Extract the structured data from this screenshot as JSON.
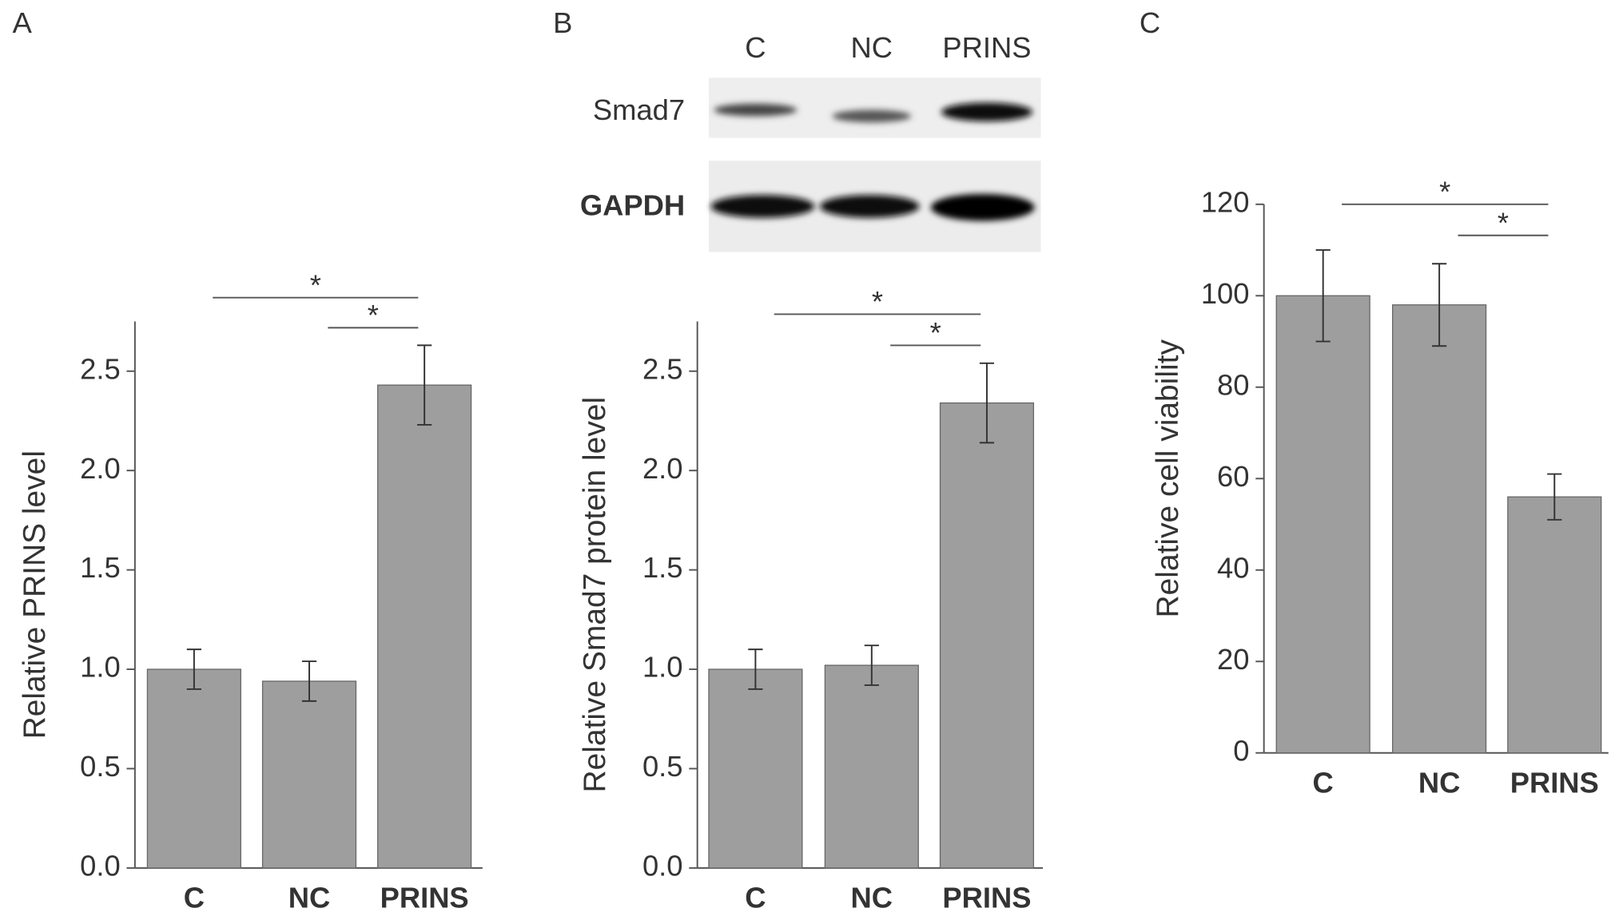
{
  "chart_data": [
    {
      "type": "bar",
      "panel": "A",
      "ylabel": "Relative PRINS level",
      "categories": [
        "C",
        "NC",
        "PRINS"
      ],
      "values": [
        1.0,
        0.94,
        2.43
      ],
      "errors": [
        0.1,
        0.1,
        0.2
      ],
      "color": "#9e9e9e",
      "ylim": [
        0,
        2.75
      ],
      "yticks": [
        {
          "value": 0,
          "label": "0.0"
        },
        0.5,
        {
          "value": 1,
          "label": "1.0"
        },
        1.5,
        {
          "value": 2,
          "label": "2.0"
        },
        2.5
      ],
      "significance": [
        {
          "label": "*",
          "from": "C",
          "to": "PRINS"
        },
        {
          "label": "*",
          "from": "NC",
          "to": "PRINS"
        }
      ]
    },
    {
      "type": "bar",
      "panel": "B",
      "ylabel": "Relative Smad7 protein level",
      "blot": {
        "lanes": [
          "C",
          "NC",
          "PRINS"
        ],
        "rows": [
          "Smad7",
          "GAPDH"
        ]
      },
      "categories": [
        "C",
        "NC",
        "PRINS"
      ],
      "values": [
        1.0,
        1.02,
        2.34
      ],
      "errors": [
        0.1,
        0.1,
        0.2
      ],
      "color": "#9e9e9e",
      "ylim": [
        0,
        2.75
      ],
      "yticks": [
        {
          "value": 0,
          "label": "0.0"
        },
        0.5,
        {
          "value": 1,
          "label": "1.0"
        },
        1.5,
        {
          "value": 2,
          "label": "2.0"
        },
        2.5
      ],
      "significance": [
        {
          "label": "*",
          "from": "C",
          "to": "PRINS"
        },
        {
          "label": "*",
          "from": "NC",
          "to": "PRINS"
        }
      ]
    },
    {
      "type": "bar",
      "panel": "C",
      "ylabel": "Relative cell viability",
      "categories": [
        "C",
        "NC",
        "PRINS"
      ],
      "values": [
        100,
        98,
        56
      ],
      "errors": [
        10,
        9,
        5
      ],
      "color": "#9e9e9e",
      "ylim": [
        0,
        120
      ],
      "yticks": [
        0,
        20,
        40,
        60,
        80,
        100,
        120
      ],
      "significance": [
        {
          "label": "*",
          "from": "C",
          "to": "PRINS"
        },
        {
          "label": "*",
          "from": "NC",
          "to": "PRINS"
        }
      ]
    }
  ]
}
